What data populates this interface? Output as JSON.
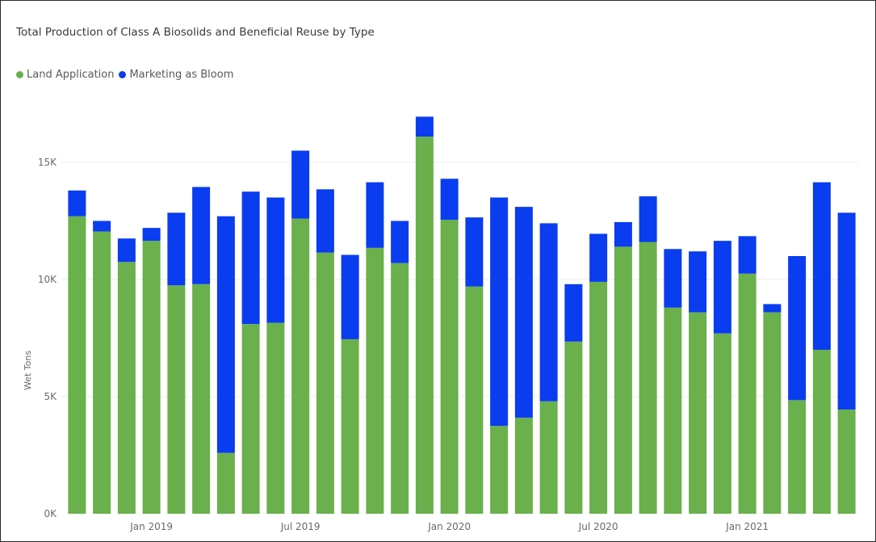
{
  "title": "Total Production of Class A Biosolids and Beneficial Reuse by Type",
  "legend": [
    {
      "label": "Land Application",
      "color": "#6ab04c"
    },
    {
      "label": "Marketing as Bloom",
      "color": "#0a3cf0"
    }
  ],
  "chart_data": {
    "type": "bar",
    "stacked": true,
    "title": "Total Production of Class A Biosolids and Beneficial Reuse by Type",
    "xlabel": "",
    "ylabel": "Wet Tons",
    "ylim": [
      0,
      17500
    ],
    "yticks": [
      0,
      5000,
      10000,
      15000
    ],
    "ytick_labels": [
      "0K",
      "5K",
      "10K",
      "15K"
    ],
    "grid": "horizontal",
    "legend_position": "top-left",
    "categories": [
      "Oct 2018",
      "Nov 2018",
      "Dec 2018",
      "Jan 2019",
      "Feb 2019",
      "Mar 2019",
      "Apr 2019",
      "May 2019",
      "Jun 2019",
      "Jul 2019",
      "Aug 2019",
      "Sep 2019",
      "Oct 2019",
      "Nov 2019",
      "Dec 2019",
      "Jan 2020",
      "Feb 2020",
      "Mar 2020",
      "Apr 2020",
      "May 2020",
      "Jun 2020",
      "Jul 2020",
      "Aug 2020",
      "Sep 2020",
      "Oct 2020",
      "Nov 2020",
      "Dec 2020",
      "Jan 2021",
      "Feb 2021",
      "Mar 2021",
      "Apr 2021",
      "May 2021"
    ],
    "xtick_labels": [
      {
        "label": "Jan 2019",
        "category_index": 3
      },
      {
        "label": "Jul 2019",
        "category_index": 9
      },
      {
        "label": "Jan 2020",
        "category_index": 15
      },
      {
        "label": "Jul 2020",
        "category_index": 21
      },
      {
        "label": "Jan 2021",
        "category_index": 27
      }
    ],
    "series": [
      {
        "name": "Land Application",
        "color": "#6ab04c",
        "values": [
          12700,
          12050,
          10750,
          11650,
          9750,
          9800,
          2600,
          8100,
          8150,
          12600,
          11150,
          7450,
          11350,
          10700,
          16100,
          12550,
          9700,
          3750,
          4100,
          4800,
          7350,
          9900,
          11400,
          11600,
          8800,
          8600,
          7700,
          10250,
          8600,
          4850,
          7000,
          4450
        ]
      },
      {
        "name": "Marketing as Bloom",
        "color": "#0a3cf0",
        "values": [
          1100,
          450,
          1000,
          550,
          3100,
          4150,
          10100,
          5650,
          5350,
          2900,
          2700,
          3600,
          2800,
          1800,
          850,
          1750,
          2950,
          9750,
          9000,
          7600,
          2450,
          2050,
          1050,
          1950,
          2500,
          2600,
          3950,
          1600,
          350,
          6150,
          7150,
          8400
        ]
      }
    ]
  }
}
